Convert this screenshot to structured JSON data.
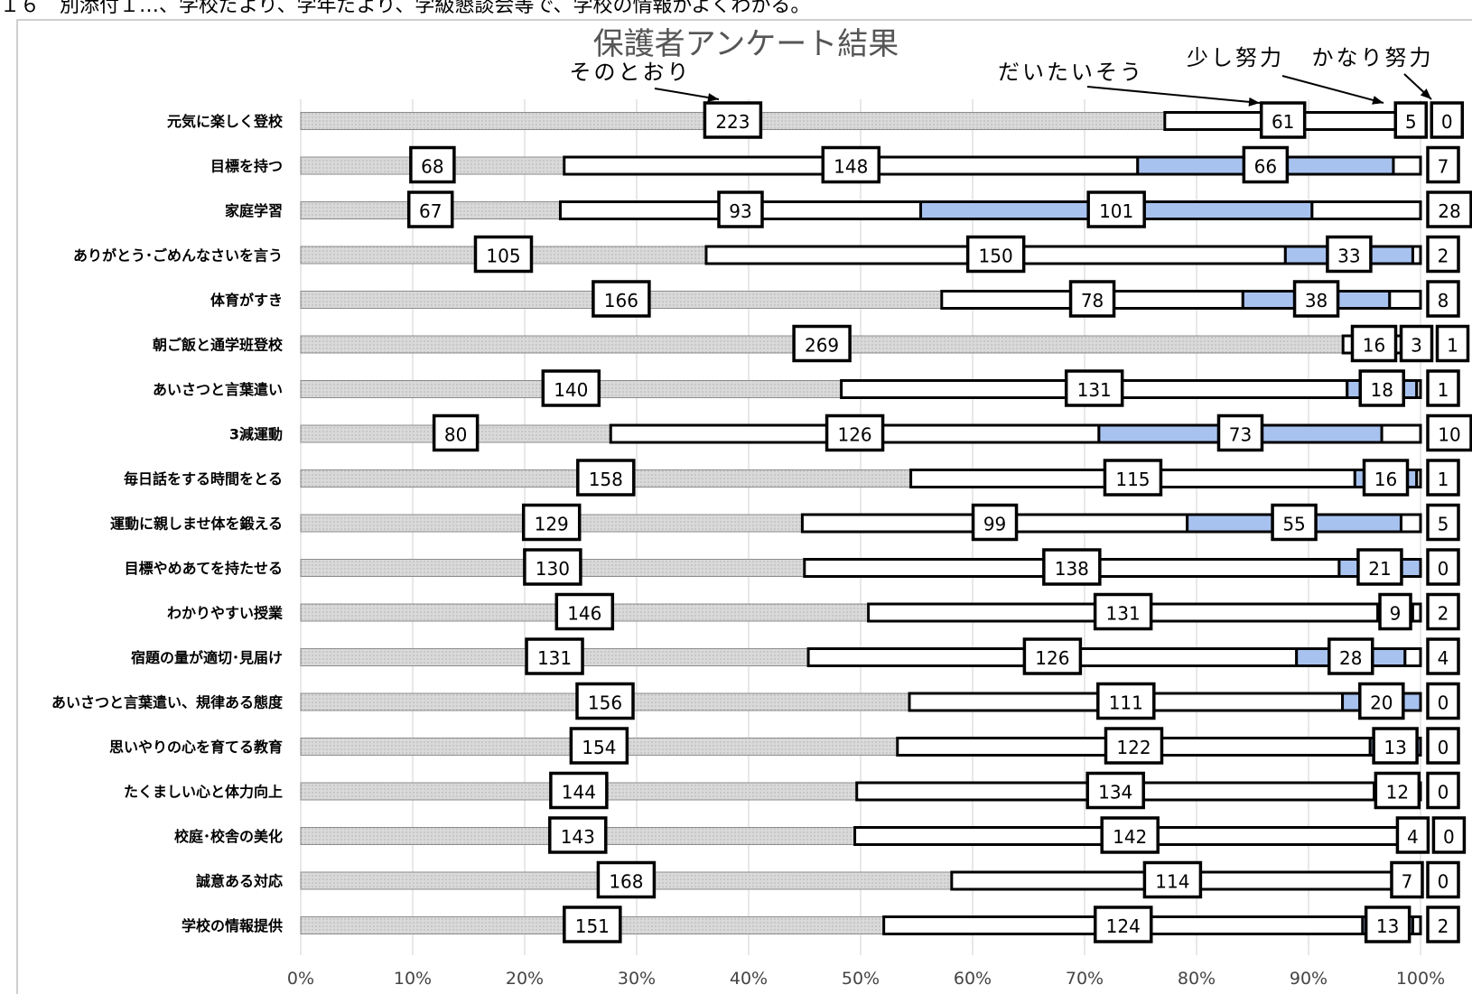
{
  "header_note": "１６　別添付１…、学校だより、学年だより、学級懇談会等で、学校の情報がよくわかる。",
  "chart_data": {
    "type": "bar",
    "stacked": "percent",
    "orientation": "horizontal",
    "title": "保護者アンケート結果",
    "categories": [
      "元気に楽しく登校",
      "目標を持つ",
      "家庭学習",
      "ありがとう･ごめんなさいを言う",
      "体育がすき",
      "朝ご飯と通学班登校",
      "あいさつと言葉遣い",
      "3減運動",
      "毎日話をする時間をとる",
      "運動に親しませ体を鍛える",
      "目標やめあてを持たせる",
      "わかりやすい授業",
      "宿題の量が適切･見届け",
      "あいさつと言葉遣い、規律ある態度",
      "思いやりの心を育てる教育",
      "たくましい心と体力向上",
      "校庭･校舎の美化",
      "誠意ある対応",
      "学校の情報提供"
    ],
    "series": [
      {
        "name": "そのとおり",
        "values": [
          223,
          68,
          67,
          105,
          166,
          269,
          140,
          80,
          158,
          129,
          130,
          146,
          131,
          156,
          154,
          144,
          143,
          168,
          151
        ]
      },
      {
        "name": "だいたいそう",
        "values": [
          61,
          148,
          93,
          150,
          78,
          16,
          131,
          126,
          115,
          99,
          138,
          131,
          126,
          111,
          122,
          134,
          142,
          114,
          124
        ]
      },
      {
        "name": "少し努力",
        "values": [
          5,
          66,
          101,
          33,
          38,
          3,
          18,
          73,
          16,
          55,
          21,
          9,
          28,
          20,
          13,
          12,
          4,
          7,
          13
        ]
      },
      {
        "name": "かなり努力",
        "values": [
          0,
          7,
          28,
          2,
          8,
          1,
          1,
          10,
          1,
          5,
          0,
          2,
          4,
          0,
          0,
          0,
          0,
          0,
          2
        ]
      }
    ],
    "xlim": [
      0,
      100
    ],
    "xticks": [
      "0%",
      "10%",
      "20%",
      "30%",
      "40%",
      "50%",
      "60%",
      "70%",
      "80%",
      "90%",
      "100%"
    ],
    "grid": true,
    "legend": "annotations-top",
    "colors": {
      "そのとおり": "#d9d9d9",
      "だいたいそう": "#ffffff",
      "少し努力": "#a8c2f0",
      "かなり努力": "#ffffff"
    }
  }
}
